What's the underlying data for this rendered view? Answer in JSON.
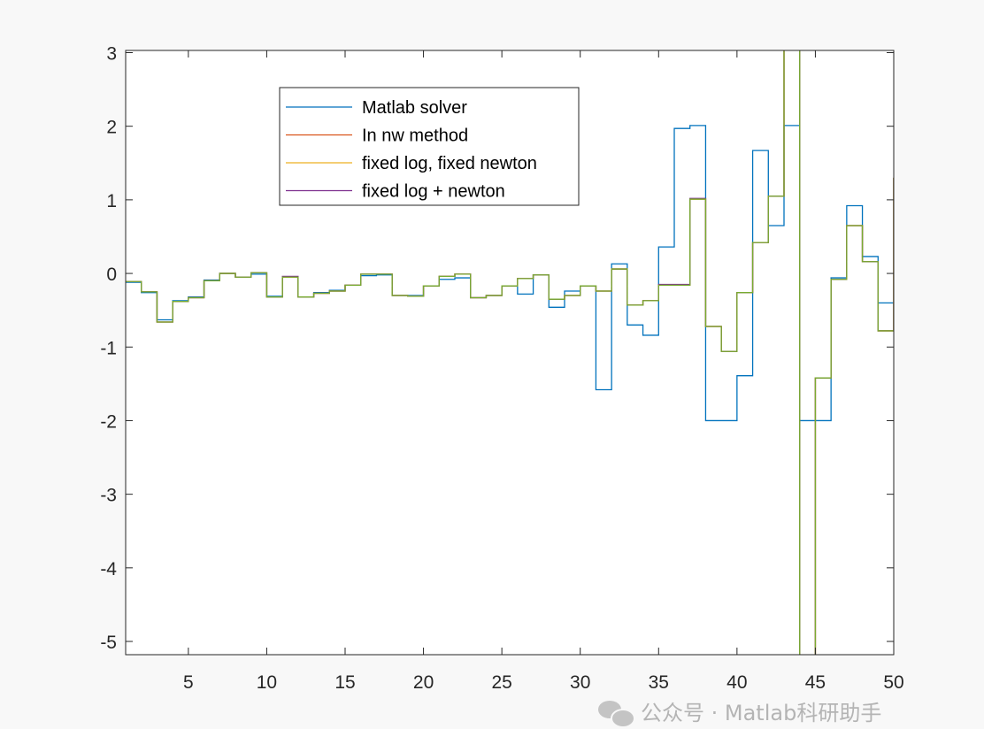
{
  "chart_data": {
    "type": "line",
    "style": "stairs",
    "title": "",
    "xlabel": "",
    "ylabel": "",
    "xlim": [
      1,
      50
    ],
    "ylim": [
      -5.18,
      3.03
    ],
    "xticks": [
      5,
      10,
      15,
      20,
      25,
      30,
      35,
      40,
      45,
      50
    ],
    "yticks": [
      -5,
      -4,
      -3,
      -2,
      -1,
      0,
      1,
      2,
      3
    ],
    "grid": false,
    "legend_position": "top-left",
    "x": [
      1,
      2,
      3,
      4,
      5,
      6,
      7,
      8,
      9,
      10,
      11,
      12,
      13,
      14,
      15,
      16,
      17,
      18,
      19,
      20,
      21,
      22,
      23,
      24,
      25,
      26,
      27,
      28,
      29,
      30,
      31,
      32,
      33,
      34,
      35,
      36,
      37,
      38,
      39,
      40,
      41,
      42,
      43,
      44,
      45,
      46,
      47,
      48,
      49,
      50
    ],
    "series": [
      {
        "name": "Matlab solver",
        "color": "#0072BD",
        "in_legend": true,
        "values": [
          -0.12,
          -0.26,
          -0.63,
          -0.37,
          -0.32,
          -0.09,
          0.0,
          -0.05,
          -0.01,
          -0.31,
          -0.05,
          -0.32,
          -0.26,
          -0.23,
          -0.16,
          -0.03,
          -0.02,
          -0.3,
          -0.3,
          -0.17,
          -0.08,
          -0.06,
          -0.33,
          -0.3,
          -0.17,
          -0.28,
          -0.02,
          -0.46,
          -0.24,
          -0.17,
          -1.58,
          0.13,
          -0.7,
          -0.84,
          0.36,
          1.97,
          2.01,
          -2.0,
          -2.0,
          -1.39,
          1.67,
          0.65,
          2.01,
          -2.0,
          -2.0,
          -0.06,
          0.92,
          0.23,
          -0.4,
          -0.4
        ]
      },
      {
        "name": "In nw method",
        "color": "#D95319",
        "in_legend": true,
        "values": [
          -0.11,
          -0.25,
          -0.66,
          -0.38,
          -0.33,
          -0.1,
          0.0,
          -0.05,
          0.01,
          -0.32,
          -0.05,
          -0.32,
          -0.27,
          -0.24,
          -0.16,
          -0.01,
          -0.01,
          -0.3,
          -0.31,
          -0.17,
          -0.04,
          -0.01,
          -0.33,
          -0.3,
          -0.17,
          -0.07,
          -0.02,
          -0.35,
          -0.3,
          -0.17,
          -0.24,
          0.06,
          -0.43,
          -0.37,
          -0.16,
          -0.16,
          1.01,
          -0.72,
          -1.06,
          -0.26,
          0.42,
          1.05,
          3.5,
          -6.0,
          -1.42,
          -0.08,
          0.65,
          0.16,
          -0.78,
          1.3
        ]
      },
      {
        "name": "fixed log, fixed newton",
        "color": "#EDB120",
        "in_legend": true,
        "values": [
          -0.11,
          -0.25,
          -0.66,
          -0.38,
          -0.33,
          -0.1,
          0.0,
          -0.05,
          0.01,
          -0.32,
          -0.05,
          -0.32,
          -0.27,
          -0.24,
          -0.16,
          -0.01,
          -0.01,
          -0.3,
          -0.31,
          -0.17,
          -0.04,
          -0.01,
          -0.33,
          -0.3,
          -0.17,
          -0.07,
          -0.02,
          -0.35,
          -0.3,
          -0.17,
          -0.24,
          0.06,
          -0.43,
          -0.37,
          -0.16,
          -0.16,
          1.01,
          -0.72,
          -1.06,
          -0.26,
          0.42,
          1.05,
          3.5,
          -6.0,
          -1.42,
          -0.08,
          0.65,
          0.16,
          -0.78,
          1.3
        ]
      },
      {
        "name": "fixed log + newton",
        "color": "#7E2F8E",
        "in_legend": true,
        "values": [
          -0.11,
          -0.25,
          -0.66,
          -0.38,
          -0.33,
          -0.1,
          0.0,
          -0.05,
          0.01,
          -0.32,
          -0.04,
          -0.32,
          -0.27,
          -0.24,
          -0.16,
          -0.01,
          -0.01,
          -0.3,
          -0.31,
          -0.17,
          -0.04,
          -0.01,
          -0.33,
          -0.3,
          -0.17,
          -0.07,
          -0.02,
          -0.35,
          -0.3,
          -0.17,
          -0.24,
          0.06,
          -0.43,
          -0.37,
          -0.15,
          -0.15,
          1.02,
          -0.72,
          -1.06,
          -0.26,
          0.42,
          1.05,
          3.5,
          -6.0,
          -1.42,
          -0.08,
          0.65,
          0.16,
          -0.78,
          1.3
        ]
      },
      {
        "color": "#77AC30",
        "in_legend": false,
        "values": [
          -0.11,
          -0.25,
          -0.66,
          -0.38,
          -0.33,
          -0.1,
          0.0,
          -0.05,
          0.01,
          -0.32,
          -0.05,
          -0.32,
          -0.27,
          -0.24,
          -0.16,
          -0.01,
          -0.01,
          -0.3,
          -0.31,
          -0.17,
          -0.04,
          -0.01,
          -0.33,
          -0.3,
          -0.17,
          -0.07,
          -0.02,
          -0.35,
          -0.3,
          -0.17,
          -0.24,
          0.06,
          -0.43,
          -0.37,
          -0.16,
          -0.16,
          1.01,
          -0.72,
          -1.06,
          -0.26,
          0.42,
          1.05,
          3.5,
          -6.0,
          -1.42,
          -0.08,
          0.65,
          0.16,
          -0.78,
          1.3
        ]
      }
    ]
  },
  "watermark": {
    "text": "公众号 · Matlab科研助手",
    "icon": "wechat-icon"
  }
}
